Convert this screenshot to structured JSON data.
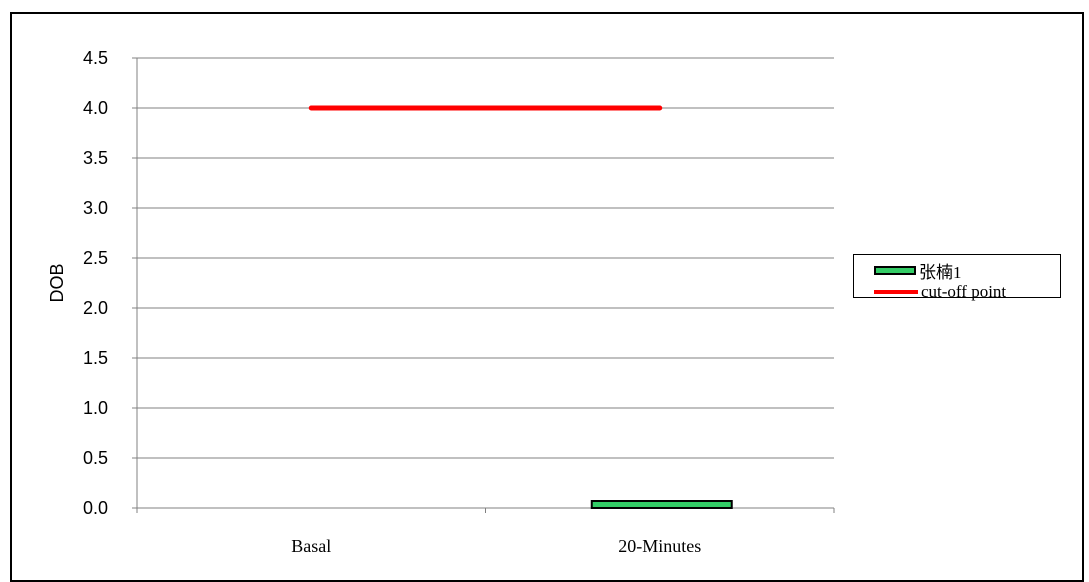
{
  "chart_data": {
    "type": "bar",
    "categories": [
      "Basal",
      "20-Minutes"
    ],
    "series": [
      {
        "name": "张楠1",
        "kind": "bar",
        "values": [
          0,
          0.07
        ],
        "color": "#33CC66"
      },
      {
        "name": "cut-off point",
        "kind": "line",
        "values": [
          4.0,
          4.0
        ],
        "color": "#FF0000"
      }
    ],
    "ylabel": "DOB",
    "ylim": [
      0,
      4.5
    ],
    "yticks": [
      "0.0",
      "0.5",
      "1.0",
      "1.5",
      "2.0",
      "2.5",
      "3.0",
      "3.5",
      "4.0",
      "4.5"
    ],
    "grid": true,
    "legend_position": "right"
  }
}
